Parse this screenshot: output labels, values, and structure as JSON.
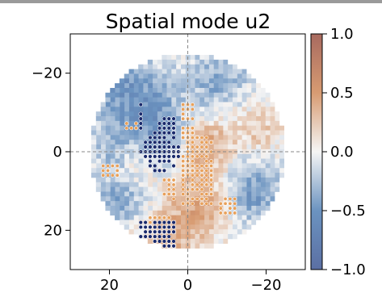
{
  "chart_data": {
    "type": "heatmap",
    "title": "Spatial mode u2",
    "xlabel": "",
    "ylabel": "",
    "xlim": [
      30,
      -30
    ],
    "ylim": [
      -30,
      30
    ],
    "y_inverted": true,
    "x_ticks": [
      {
        "value": 20,
        "label": "20"
      },
      {
        "value": 0,
        "label": "0"
      },
      {
        "value": -20,
        "label": "−20"
      }
    ],
    "y_ticks": [
      {
        "value": -20,
        "label": "−20"
      },
      {
        "value": 0,
        "label": "0"
      },
      {
        "value": 20,
        "label": "20"
      }
    ],
    "crosshair": {
      "x": 0,
      "y": 0,
      "style": "dashed"
    },
    "disk_radius": 25,
    "grid_step": 1.2,
    "colorbar": {
      "min": -1.0,
      "max": 1.0,
      "ticks": [
        {
          "value": 1.0,
          "label": "1.0"
        },
        {
          "value": 0.5,
          "label": "0.5"
        },
        {
          "value": 0.0,
          "label": "0.0"
        },
        {
          "value": -0.5,
          "label": "−0.5"
        },
        {
          "value": -1.0,
          "label": "−1.0"
        }
      ],
      "colors": [
        [
          -1.0,
          "#5b6fa3"
        ],
        [
          -0.5,
          "#6b93c0"
        ],
        [
          0.0,
          "#f5f5f5"
        ],
        [
          0.5,
          "#d79b72"
        ],
        [
          1.0,
          "#a86a5f"
        ]
      ]
    },
    "field_components": [
      {
        "x": 8,
        "y": -4,
        "sigma": 7,
        "amp": -0.55
      },
      {
        "x": 16,
        "y": -16,
        "sigma": 7,
        "amp": -0.45
      },
      {
        "x": -8,
        "y": -18,
        "sigma": 6,
        "amp": -0.35
      },
      {
        "x": -4,
        "y": -2,
        "sigma": 5,
        "amp": 0.5
      },
      {
        "x": -4,
        "y": 12,
        "sigma": 6,
        "amp": 0.45
      },
      {
        "x": 14,
        "y": 2,
        "sigma": 6,
        "amp": 0.3
      },
      {
        "x": 4,
        "y": 22,
        "sigma": 6,
        "amp": 0.3
      },
      {
        "x": -16,
        "y": 10,
        "sigma": 6,
        "amp": -0.5
      },
      {
        "x": 18,
        "y": 12,
        "sigma": 5,
        "amp": -0.45
      },
      {
        "x": -18,
        "y": -6,
        "sigma": 5,
        "amp": 0.25
      },
      {
        "x": 20,
        "y": 0,
        "sigma": 4,
        "amp": -0.3
      }
    ],
    "positive_marker_color": "#e8a05a",
    "negative_marker_color": "#1a2a6c",
    "positive_regions": [
      {
        "type": "rect",
        "x0": -6,
        "x1": 2,
        "y0": -4,
        "y1": 14
      },
      {
        "type": "rect",
        "x0": -2,
        "x1": 2,
        "y0": -12,
        "y1": -4
      },
      {
        "type": "rect",
        "x0": 3,
        "x1": 7,
        "y0": 7,
        "y1": 13
      },
      {
        "type": "rect",
        "x0": 4,
        "x1": 10,
        "y0": 16,
        "y1": 19
      },
      {
        "type": "rect",
        "x0": 18,
        "x1": 22,
        "y0": 3,
        "y1": 7
      },
      {
        "type": "rect",
        "x0": -12,
        "x1": -8,
        "y0": 12,
        "y1": 16
      },
      {
        "type": "rect",
        "x0": 12,
        "x1": 16,
        "y0": -8,
        "y1": -6
      }
    ],
    "negative_regions": [
      {
        "type": "ellipse",
        "cx": 7,
        "cy": 0,
        "rx": 5,
        "ry": 5
      },
      {
        "type": "ellipse",
        "cx": 5,
        "cy": -6,
        "rx": 2.5,
        "ry": 3
      },
      {
        "type": "rect",
        "x0": 3,
        "x1": 12,
        "y0": 17,
        "y1": 26
      },
      {
        "type": "rect",
        "x0": 11,
        "x1": 13,
        "y0": -12,
        "y1": -6
      }
    ]
  }
}
